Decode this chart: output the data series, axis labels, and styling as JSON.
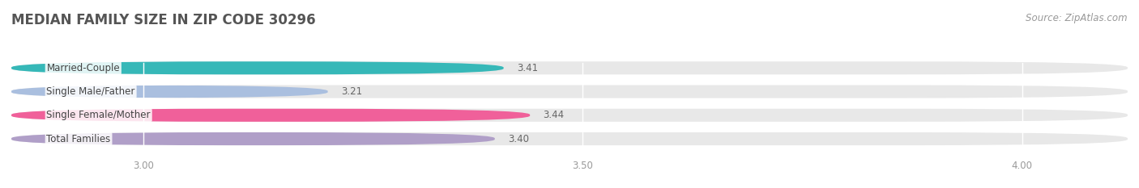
{
  "title": "MEDIAN FAMILY SIZE IN ZIP CODE 30296",
  "source": "Source: ZipAtlas.com",
  "categories": [
    "Married-Couple",
    "Single Male/Father",
    "Single Female/Mother",
    "Total Families"
  ],
  "values": [
    3.41,
    3.21,
    3.44,
    3.4
  ],
  "bar_colors": [
    "#36b8b8",
    "#aabfdf",
    "#f0609a",
    "#b09fc8"
  ],
  "xlim_min": 2.85,
  "xlim_max": 4.12,
  "data_min": 3.0,
  "xticks": [
    3.0,
    3.5,
    4.0
  ],
  "xtick_labels": [
    "3.00",
    "3.50",
    "4.00"
  ],
  "background_color": "#ffffff",
  "bar_bg_color": "#e8e8e8",
  "title_fontsize": 12,
  "label_fontsize": 8.5,
  "value_fontsize": 8.5,
  "source_fontsize": 8.5,
  "title_color": "#555555",
  "label_color": "#444444",
  "value_color": "#666666",
  "tick_color": "#999999",
  "source_color": "#999999",
  "bar_height": 0.55,
  "n_bars": 4
}
